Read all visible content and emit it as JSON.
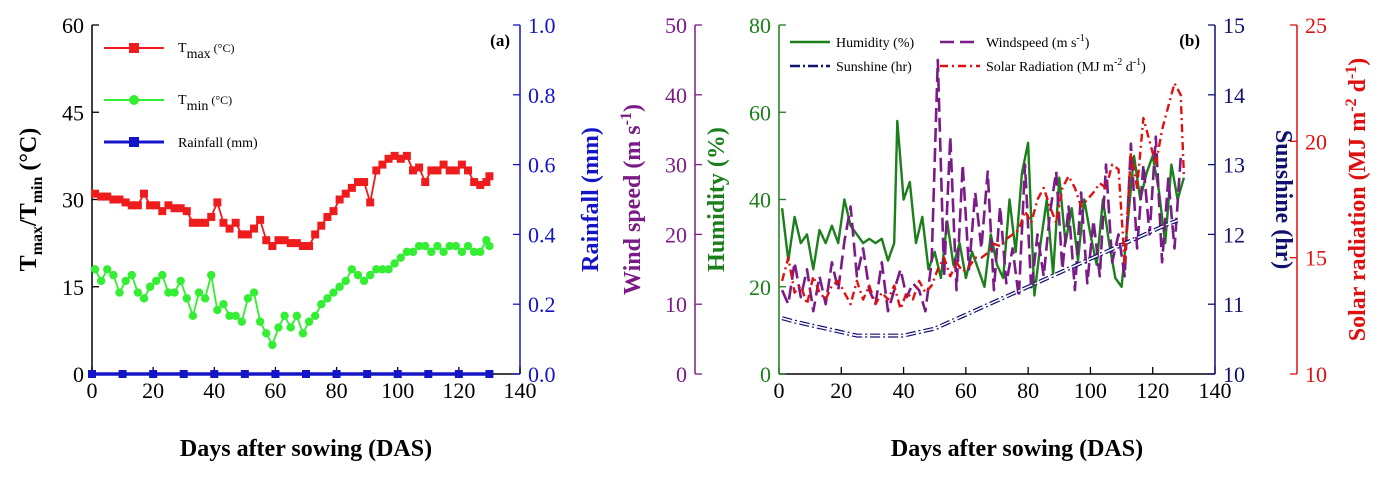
{
  "chart_data": [
    {
      "panel_label": "(a)",
      "type": "line",
      "xlabel": "Days after sowing (DAS)",
      "xlim": [
        0,
        140
      ],
      "xticks": [
        "0",
        "20",
        "40",
        "60",
        "80",
        "100",
        "120",
        "140"
      ],
      "y_axes": [
        {
          "side": "left",
          "label_main": "T",
          "label_sub1": "max",
          "label_mid": "/T",
          "label_sub2": "min",
          "label_tail": " (°C)",
          "lim": [
            0,
            60
          ],
          "ticks": [
            "0",
            "15",
            "30",
            "45",
            "60"
          ],
          "color": "#000000"
        },
        {
          "side": "right",
          "label": "Rainfall (mm)",
          "lim": [
            0,
            1.0
          ],
          "ticks": [
            "0.0",
            "0.2",
            "0.4",
            "0.6",
            "0.8",
            "1.0"
          ],
          "color": "#1515c8"
        }
      ],
      "series": [
        {
          "legend_main": "T",
          "legend_sub": "max",
          "legend_tail": " (°C)",
          "axis": 0,
          "color": "#ee1c1c",
          "marker": "square",
          "x": [
            1,
            3,
            5,
            7,
            9,
            11,
            13,
            15,
            17,
            19,
            21,
            23,
            25,
            27,
            29,
            31,
            33,
            35,
            37,
            39,
            41,
            43,
            45,
            47,
            49,
            51,
            53,
            55,
            57,
            59,
            61,
            63,
            65,
            67,
            69,
            71,
            73,
            75,
            77,
            79,
            81,
            83,
            85,
            87,
            89,
            91,
            93,
            95,
            97,
            99,
            101,
            103,
            105,
            107,
            109,
            111,
            113,
            115,
            117,
            119,
            121,
            123,
            125,
            127,
            129,
            130
          ],
          "y": [
            31,
            30.5,
            30.5,
            30,
            30,
            29.5,
            29,
            29,
            31,
            29,
            29,
            28,
            29,
            28.5,
            28.5,
            28,
            26,
            26,
            26,
            27,
            29.5,
            26,
            25,
            26,
            24,
            24,
            25,
            26.5,
            23,
            22,
            23,
            23,
            22.5,
            22.5,
            22,
            22,
            24,
            25.5,
            27,
            28,
            30,
            31,
            32,
            33,
            33,
            29.5,
            35,
            36,
            37,
            37.5,
            37,
            37.5,
            35,
            35.5,
            33,
            35,
            35,
            36,
            35,
            35,
            36,
            35,
            33,
            32.5,
            33,
            34
          ]
        },
        {
          "legend_main": "T",
          "legend_sub": "min",
          "legend_tail": " (°C)",
          "axis": 0,
          "color": "#33ee33",
          "marker": "circle",
          "x": [
            1,
            3,
            5,
            7,
            9,
            11,
            13,
            15,
            17,
            19,
            21,
            23,
            25,
            27,
            29,
            31,
            33,
            35,
            37,
            39,
            41,
            43,
            45,
            47,
            49,
            51,
            53,
            55,
            57,
            59,
            61,
            63,
            65,
            67,
            69,
            71,
            73,
            75,
            77,
            79,
            81,
            83,
            85,
            87,
            89,
            91,
            93,
            95,
            97,
            99,
            101,
            103,
            105,
            107,
            109,
            111,
            113,
            115,
            117,
            119,
            121,
            123,
            125,
            127,
            129,
            130
          ],
          "y": [
            18,
            16,
            18,
            17,
            14,
            16,
            17,
            14,
            13,
            15,
            16,
            17,
            14,
            14,
            16,
            13,
            10,
            14,
            13,
            17,
            11,
            12,
            10,
            10,
            9,
            13,
            14,
            9,
            7,
            5,
            8,
            10,
            8,
            10,
            7,
            9,
            10,
            12,
            13,
            14,
            15,
            16,
            18,
            17,
            16,
            17,
            18,
            18,
            18,
            19,
            20,
            21,
            21,
            22,
            22,
            21,
            22,
            21,
            22,
            22,
            21,
            22,
            21,
            21,
            23,
            22
          ]
        },
        {
          "legend_main": "Rainfall (mm)",
          "legend_sub": "",
          "legend_tail": "",
          "axis": 1,
          "color": "#1515c8",
          "marker": "square",
          "x": [
            0,
            10,
            20,
            30,
            40,
            50,
            60,
            70,
            80,
            90,
            100,
            110,
            120,
            130
          ],
          "y": [
            0,
            0,
            0,
            0,
            0,
            0,
            0,
            0,
            0,
            0,
            0,
            0,
            0,
            0
          ]
        }
      ]
    },
    {
      "panel_label": "(b)",
      "type": "line",
      "xlabel": "Days after sowing (DAS)",
      "xlim": [
        0,
        140
      ],
      "xticks": [
        "0",
        "20",
        "40",
        "60",
        "80",
        "100",
        "120",
        "140"
      ],
      "y_axes": [
        {
          "side": "left-outer",
          "label": "Wind speed (m s",
          "label_sup": "-1",
          "label_tail": ")",
          "lim": [
            0,
            50
          ],
          "ticks": [
            "0",
            "10",
            "20",
            "30",
            "40",
            "50"
          ],
          "color": "#7b1b87"
        },
        {
          "side": "left",
          "label": "Humidity (%)",
          "lim": [
            0,
            80
          ],
          "ticks": [
            "0",
            "20",
            "40",
            "60",
            "80"
          ],
          "color": "#1c7f1c"
        },
        {
          "side": "right",
          "label": "Sunshine (hr)",
          "lim": [
            10,
            15
          ],
          "ticks": [
            "10",
            "11",
            "12",
            "13",
            "14",
            "15"
          ],
          "color": "#101070"
        },
        {
          "side": "right-outer",
          "label": "Solar radiation (MJ m",
          "label_sup": "-2",
          "label_mid": " d",
          "label_sup2": "-1",
          "label_tail": ")",
          "lim": [
            10,
            25
          ],
          "ticks": [
            "10",
            "15",
            "20",
            "25"
          ],
          "color": "#e01010"
        }
      ],
      "legend": [
        {
          "text": "Humidity (%)",
          "color": "#1c7f1c",
          "dash": "solid"
        },
        {
          "text": "Windspeed (m s",
          "sup": "-1",
          "tail": ")",
          "color": "#7b1b87",
          "dash": "long"
        },
        {
          "text": "Sunshine (hr)",
          "color": "#101070",
          "dash": "dashdot"
        },
        {
          "text": "Solar Radiation (MJ m",
          "sup": "-2",
          "mid": " d",
          "sup2": "-1",
          "tail": ")",
          "color": "#e01010",
          "dash": "dashdot2"
        }
      ],
      "series": [
        {
          "name": "Humidity (%)",
          "axis": 1,
          "color": "#1c7f1c",
          "x": [
            1,
            3,
            5,
            7,
            9,
            11,
            13,
            15,
            17,
            19,
            21,
            23,
            25,
            27,
            29,
            31,
            33,
            35,
            37,
            38,
            40,
            42,
            44,
            46,
            48,
            50,
            52,
            54,
            56,
            58,
            60,
            62,
            64,
            66,
            68,
            70,
            72,
            74,
            76,
            78,
            80,
            82,
            84,
            86,
            88,
            90,
            92,
            94,
            96,
            98,
            100,
            102,
            104,
            106,
            108,
            110,
            112,
            114,
            116,
            118,
            120,
            122,
            124,
            126,
            128,
            130
          ],
          "y": [
            38,
            26,
            36,
            30,
            32,
            24,
            33,
            30,
            34,
            30,
            40,
            34,
            32,
            30,
            31,
            30,
            31,
            26,
            30,
            58,
            40,
            44,
            30,
            36,
            24,
            28,
            22,
            35,
            25,
            30,
            22,
            28,
            24,
            20,
            32,
            25,
            22,
            40,
            28,
            46,
            53,
            18,
            30,
            40,
            23,
            45,
            30,
            38,
            26,
            40,
            32,
            25,
            40,
            30,
            22,
            20,
            35,
            50,
            40,
            46,
            50,
            42,
            30,
            48,
            40,
            45
          ]
        },
        {
          "name": "Windspeed",
          "axis": 0,
          "color": "#7b1b87",
          "x": [
            1,
            3,
            5,
            7,
            9,
            11,
            13,
            15,
            17,
            19,
            21,
            23,
            25,
            27,
            29,
            31,
            33,
            35,
            37,
            39,
            41,
            43,
            45,
            47,
            49,
            51,
            53,
            55,
            57,
            59,
            61,
            63,
            65,
            67,
            69,
            71,
            73,
            75,
            77,
            79,
            81,
            83,
            85,
            87,
            89,
            91,
            93,
            95,
            97,
            99,
            101,
            103,
            105,
            107,
            109,
            111,
            113,
            115,
            117,
            119,
            121,
            123,
            125,
            127,
            129
          ],
          "y": [
            12,
            10,
            16,
            11,
            15,
            9,
            14,
            10,
            16,
            12,
            19,
            24,
            14,
            18,
            12,
            10,
            16,
            9,
            12,
            15,
            11,
            13,
            12,
            9,
            16,
            45,
            14,
            34,
            12,
            30,
            15,
            26,
            18,
            29,
            12,
            24,
            13,
            18,
            11,
            30,
            12,
            20,
            14,
            23,
            29,
            15,
            24,
            12,
            26,
            13,
            22,
            14,
            30,
            16,
            20,
            14,
            33,
            18,
            30,
            20,
            34,
            16,
            28,
            18,
            31
          ]
        },
        {
          "name": "Sunshine (hr)",
          "axis": 2,
          "color": "#101070",
          "x": [
            1,
            5,
            10,
            15,
            20,
            25,
            30,
            35,
            40,
            45,
            50,
            55,
            60,
            65,
            70,
            75,
            80,
            85,
            90,
            95,
            100,
            105,
            110,
            115,
            120,
            125,
            128
          ],
          "y": [
            10.8,
            10.75,
            10.7,
            10.65,
            10.6,
            10.55,
            10.55,
            10.55,
            10.55,
            10.6,
            10.65,
            10.75,
            10.85,
            10.95,
            11.05,
            11.15,
            11.25,
            11.35,
            11.45,
            11.55,
            11.65,
            11.75,
            11.85,
            11.95,
            12.05,
            12.15,
            12.2
          ]
        },
        {
          "name": "Solar Radiation",
          "axis": 3,
          "color": "#e01010",
          "x": [
            1,
            3,
            5,
            7,
            9,
            11,
            13,
            15,
            17,
            19,
            21,
            23,
            25,
            27,
            29,
            31,
            33,
            35,
            37,
            39,
            41,
            43,
            45,
            47,
            49,
            51,
            53,
            55,
            57,
            59,
            61,
            63,
            65,
            67,
            69,
            71,
            73,
            75,
            77,
            79,
            81,
            83,
            85,
            87,
            89,
            91,
            93,
            95,
            97,
            99,
            101,
            103,
            105,
            107,
            109,
            111,
            113,
            115,
            117,
            119,
            121,
            123,
            125,
            127,
            129,
            130
          ],
          "y": [
            14,
            15,
            13.5,
            13.8,
            13,
            14.2,
            13.5,
            13.2,
            13.8,
            14,
            13.5,
            13,
            14,
            13.2,
            13.8,
            13,
            13.5,
            13.2,
            13.8,
            12.8,
            13.5,
            13.2,
            14,
            13.5,
            13.8,
            14.5,
            15,
            14.2,
            14.8,
            14.4,
            14.6,
            15,
            15,
            15.2,
            15.6,
            15.5,
            15.8,
            16,
            16.2,
            17,
            16.5,
            17.5,
            18,
            17.2,
            16.5,
            18,
            18.5,
            18,
            17.2,
            17.5,
            17.8,
            18.2,
            18,
            19,
            18.8,
            14.8,
            19.5,
            18,
            21,
            20,
            19,
            20.5,
            21.5,
            22.5,
            22,
            18.5
          ]
        }
      ]
    }
  ]
}
